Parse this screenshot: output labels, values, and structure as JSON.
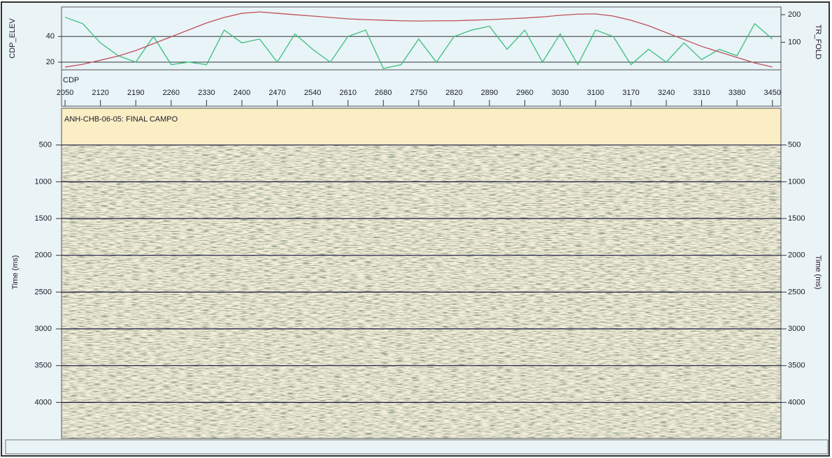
{
  "chart_data": [
    {
      "type": "line",
      "ylabel": "CDP_ELEV",
      "y2label": "TR_FOLD",
      "xlabel": "CDP",
      "x": [
        2050,
        2085,
        2120,
        2155,
        2190,
        2225,
        2260,
        2295,
        2330,
        2365,
        2400,
        2435,
        2470,
        2505,
        2540,
        2575,
        2610,
        2645,
        2680,
        2715,
        2750,
        2785,
        2820,
        2855,
        2890,
        2925,
        2960,
        2995,
        3030,
        3065,
        3100,
        3135,
        3170,
        3205,
        3240,
        3275,
        3310,
        3345,
        3380,
        3415,
        3450
      ],
      "series": [
        {
          "color": "#3cbf7a",
          "values": [
            55,
            50,
            35,
            25,
            20,
            40,
            18,
            20,
            18,
            45,
            35,
            38,
            20,
            42,
            30,
            20,
            40,
            45,
            15,
            18,
            38,
            20,
            40,
            45,
            48,
            30,
            45,
            20,
            42,
            18,
            45,
            40,
            18,
            30,
            20,
            35,
            22,
            30,
            25,
            50,
            38
          ]
        },
        {
          "color": "#c0505a",
          "axis": "y2",
          "values": [
            10,
            20,
            35,
            50,
            70,
            95,
            120,
            145,
            170,
            190,
            205,
            210,
            205,
            200,
            195,
            190,
            185,
            182,
            180,
            178,
            177,
            178,
            178,
            180,
            182,
            185,
            188,
            192,
            198,
            202,
            203,
            195,
            180,
            160,
            135,
            110,
            85,
            65,
            45,
            25,
            10
          ]
        }
      ],
      "xlim": [
        2043,
        3467
      ],
      "xticks": [
        2050,
        2120,
        2190,
        2260,
        2330,
        2400,
        2470,
        2540,
        2610,
        2680,
        2750,
        2820,
        2890,
        2960,
        3030,
        3100,
        3170,
        3240,
        3310,
        3380,
        3450
      ],
      "ylim": [
        14,
        63
      ],
      "yticks": [
        20,
        40
      ],
      "y2lim": [
        0,
        228
      ],
      "y2ticks": [
        100,
        200
      ],
      "grid": true
    },
    {
      "type": "seismic",
      "title": "ANH-CHB-06-05: FINAL CAMPO",
      "ylabel": "Time (ms)",
      "ylim": [
        0,
        4490
      ],
      "yticks": [
        500,
        1000,
        1500,
        2000,
        2500,
        3000,
        3500,
        4000
      ],
      "grid": true,
      "inverted": true
    }
  ]
}
